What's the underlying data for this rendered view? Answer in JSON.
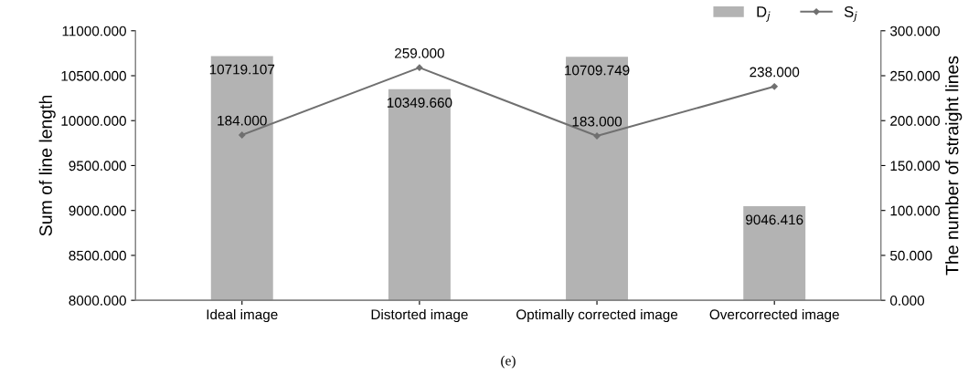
{
  "chart_data": {
    "type": "bar",
    "categories": [
      "Ideal image",
      "Distorted image",
      "Optimally corrected image",
      "Overcorrected image"
    ],
    "ylabel": "Sum of line length",
    "y2label": "The number of straight lines",
    "ylim": [
      8000,
      11000
    ],
    "yticks": [
      {
        "value": 8000,
        "label": "8000.000"
      },
      {
        "value": 8500,
        "label": "8500.000"
      },
      {
        "value": 9000,
        "label": "9000.000"
      },
      {
        "value": 9500,
        "label": "9500.000"
      },
      {
        "value": 10000,
        "label": "10000.000"
      },
      {
        "value": 10500,
        "label": "10500.000"
      },
      {
        "value": 11000,
        "label": "11000.000"
      }
    ],
    "y2lim": [
      0,
      300
    ],
    "y2ticks": [
      {
        "value": 0,
        "label": "0.000"
      },
      {
        "value": 50,
        "label": "50.000"
      },
      {
        "value": 100,
        "label": "100.000"
      },
      {
        "value": 150,
        "label": "150.000"
      },
      {
        "value": 200,
        "label": "200.000"
      },
      {
        "value": 250,
        "label": "250.000"
      },
      {
        "value": 300,
        "label": "300.000"
      }
    ],
    "series": [
      {
        "name": "D$_{j}$",
        "color": "#b3b3b3",
        "values": [
          10719.107,
          10349.66,
          10709.749,
          9046.416
        ],
        "value_labels": [
          "10719.107",
          "10349.660",
          "10709.749",
          "9046.416"
        ]
      },
      {
        "name": "S$_{j}$",
        "type": "line",
        "axis": "y2",
        "color": "#707070",
        "marker": "diamond",
        "values": [
          184,
          259,
          183,
          238
        ],
        "value_labels": [
          "184.000",
          "259.000",
          "183.000",
          "238.000"
        ]
      }
    ],
    "legend": "top right",
    "grid": false,
    "annotations": [
      "(e)"
    ]
  }
}
